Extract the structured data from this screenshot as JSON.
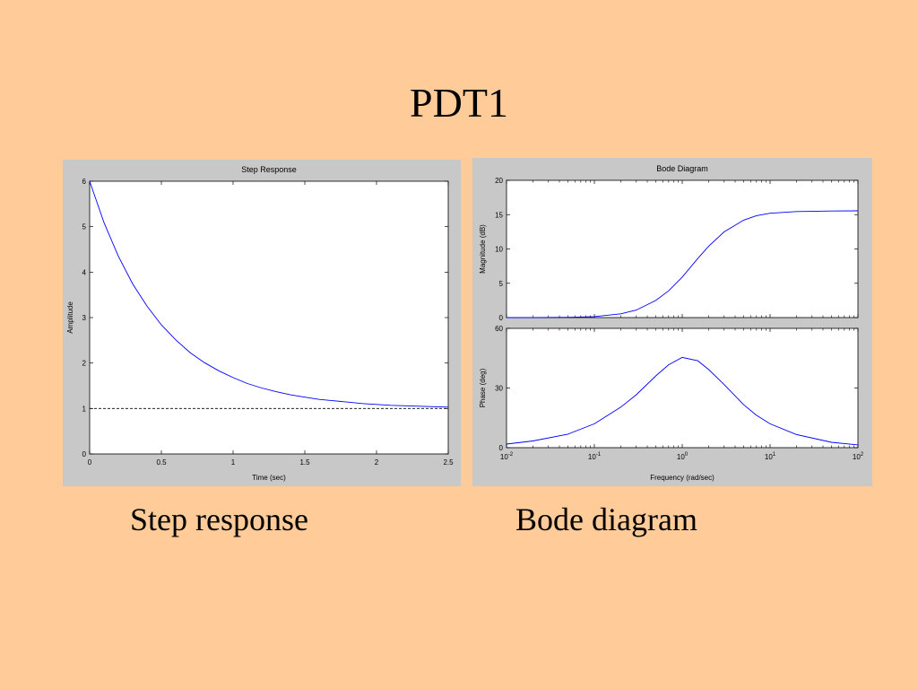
{
  "slide": {
    "title": "PDT1",
    "background": "#FFCC99",
    "captions": {
      "left": "Step response",
      "right": "Bode diagram"
    }
  },
  "colors": {
    "figure_bg": "#C8C8C8",
    "axes_bg": "#FFFFFF",
    "line": "#0000FF",
    "dashed": "#000000"
  },
  "chart_data": [
    {
      "type": "line",
      "title": "Step Response",
      "xlabel": "Time (sec)",
      "ylabel": "Amplitude",
      "xlim": [
        0,
        2.5
      ],
      "ylim": [
        0,
        6
      ],
      "xticks": [
        0,
        0.5,
        1,
        1.5,
        2,
        2.5
      ],
      "xtick_labels": [
        "0",
        "0.5",
        "1",
        "1.5",
        "2",
        "2.5"
      ],
      "yticks": [
        0,
        1,
        2,
        3,
        4,
        5,
        6
      ],
      "ytick_labels": [
        "0",
        "1",
        "2",
        "3",
        "4",
        "5",
        "6"
      ],
      "series": [
        {
          "x": [
            0,
            0.1,
            0.2,
            0.3,
            0.4,
            0.5,
            0.6,
            0.7,
            0.8,
            0.9,
            1.0,
            1.1,
            1.2,
            1.3,
            1.4,
            1.5,
            1.6,
            1.7,
            1.8,
            1.9,
            2.0,
            2.1,
            2.2,
            2.3,
            2.4,
            2.5
          ],
          "y": [
            6,
            5.09,
            4.35,
            3.74,
            3.25,
            2.84,
            2.51,
            2.23,
            2.01,
            1.83,
            1.68,
            1.55,
            1.45,
            1.37,
            1.3,
            1.25,
            1.2,
            1.17,
            1.14,
            1.11,
            1.09,
            1.07,
            1.06,
            1.05,
            1.04,
            1.03
          ]
        }
      ],
      "reference_line": {
        "y": 1,
        "style": "dashed"
      },
      "grid": false
    },
    {
      "type": "line",
      "title": "Bode Diagram",
      "xlabel": "Frequency  (rad/sec)",
      "xscale": "log",
      "xlim": [
        0.01,
        100
      ],
      "xtick_labels": [
        {
          "base": "10",
          "exp": "-2"
        },
        {
          "base": "10",
          "exp": "-1"
        },
        {
          "base": "10",
          "exp": "0"
        },
        {
          "base": "10",
          "exp": "1"
        },
        {
          "base": "10",
          "exp": "2"
        }
      ],
      "magnitude": {
        "ylabel": "Magnitude (dB)",
        "ylim": [
          0,
          20
        ],
        "yticks": [
          0,
          5,
          10,
          15,
          20
        ],
        "ytick_labels": [
          "0",
          "5",
          "10",
          "15",
          "20"
        ],
        "x": [
          0.01,
          0.02,
          0.05,
          0.1,
          0.2,
          0.3,
          0.5,
          0.7,
          1,
          1.5,
          2,
          3,
          5,
          7,
          10,
          20,
          50,
          100
        ],
        "y": [
          0.0,
          0.01,
          0.04,
          0.15,
          0.55,
          1.1,
          2.5,
          3.9,
          5.9,
          8.6,
          10.4,
          12.5,
          14.2,
          14.85,
          15.2,
          15.45,
          15.53,
          15.55
        ]
      },
      "phase": {
        "ylabel": "Phase (deg)",
        "ylim": [
          0,
          60
        ],
        "yticks": [
          0,
          30,
          60
        ],
        "ytick_labels": [
          "0",
          "30",
          "60"
        ],
        "x": [
          0.01,
          0.02,
          0.05,
          0.1,
          0.2,
          0.3,
          0.5,
          0.7,
          1,
          1.5,
          2,
          3,
          5,
          7,
          10,
          20,
          50,
          100
        ],
        "y": [
          1.8,
          3.4,
          6.8,
          12.0,
          20.4,
          26.6,
          36.1,
          41.7,
          45.4,
          43.7,
          39.3,
          31.7,
          21.6,
          16.3,
          12.0,
          6.6,
          2.7,
          1.4
        ]
      },
      "grid": false
    }
  ]
}
